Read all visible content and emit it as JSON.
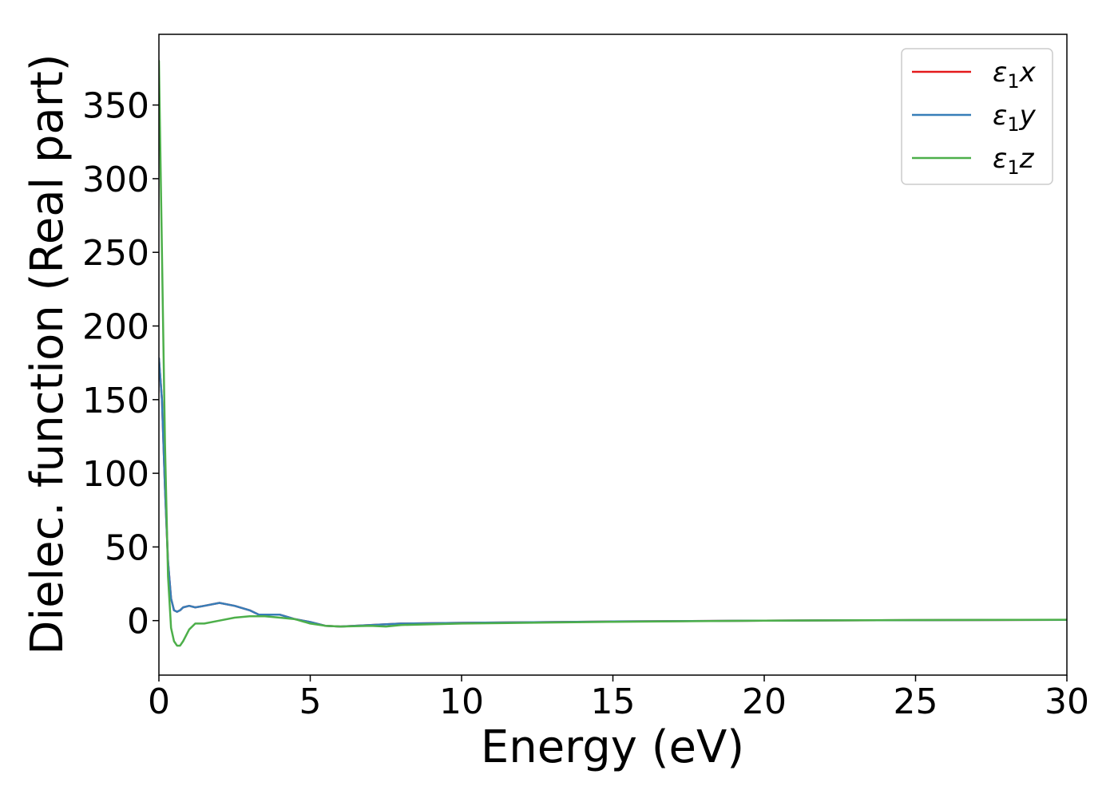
{
  "chart_data": {
    "type": "line",
    "title": "",
    "xlabel": "Energy (eV)",
    "ylabel": "Dielec. function (Real part)",
    "xlim": [
      0,
      30
    ],
    "ylim": [
      -37,
      398
    ],
    "xticks": [
      0,
      5,
      10,
      15,
      20,
      25,
      30
    ],
    "yticks": [
      0,
      50,
      100,
      150,
      200,
      250,
      300,
      350
    ],
    "grid": false,
    "legend": {
      "placement": "top-right"
    },
    "series": [
      {
        "name": "ε1x",
        "label_base": "ε",
        "label_sub": "1",
        "label_var": "x",
        "color": "#e41a1c",
        "x": [
          0,
          0.1,
          0.2,
          0.3,
          0.4,
          0.5,
          0.6,
          0.7,
          0.8,
          1.0,
          1.2,
          1.5,
          2.0,
          2.5,
          3.0,
          3.3,
          3.6,
          4.0,
          4.5,
          5.0,
          5.5,
          6.0,
          7.0,
          8.0,
          10,
          12,
          15,
          20,
          25,
          30
        ],
        "y": [
          178,
          150,
          90,
          40,
          15,
          7,
          6,
          7,
          9,
          10,
          9,
          10,
          12,
          10,
          7,
          4,
          4,
          4,
          1,
          -1,
          -3.5,
          -4,
          -3,
          -2,
          -1.5,
          -1.2,
          -0.6,
          0,
          0.3,
          0.5
        ]
      },
      {
        "name": "ε1y",
        "label_base": "ε",
        "label_sub": "1",
        "label_var": "y",
        "color": "#377eb8",
        "x": [
          0,
          0.1,
          0.2,
          0.3,
          0.4,
          0.5,
          0.6,
          0.7,
          0.8,
          1.0,
          1.2,
          1.5,
          2.0,
          2.5,
          3.0,
          3.3,
          3.6,
          4.0,
          4.5,
          5.0,
          5.5,
          6.0,
          7.0,
          8.0,
          10,
          12,
          15,
          20,
          25,
          30
        ],
        "y": [
          178,
          150,
          90,
          40,
          15,
          7,
          6,
          7,
          9,
          10,
          9,
          10,
          12,
          10,
          7,
          4,
          4,
          4,
          1,
          -1,
          -3.5,
          -4,
          -3,
          -2,
          -1.5,
          -1.2,
          -0.6,
          0,
          0.3,
          0.5
        ]
      },
      {
        "name": "ε1z",
        "label_base": "ε",
        "label_sub": "1",
        "label_var": "z",
        "color": "#4daf4a",
        "x": [
          0,
          0.1,
          0.2,
          0.3,
          0.4,
          0.5,
          0.6,
          0.7,
          0.8,
          1.0,
          1.2,
          1.5,
          2.0,
          2.5,
          3.0,
          3.5,
          4.0,
          4.5,
          5.0,
          5.5,
          6.0,
          7.0,
          7.5,
          8.0,
          10,
          12,
          15,
          20,
          25,
          30
        ],
        "y": [
          380,
          250,
          120,
          30,
          -5,
          -14,
          -17,
          -17,
          -14,
          -6,
          -2,
          -2,
          0,
          2,
          3,
          3,
          2,
          1,
          -2,
          -3.5,
          -4,
          -3.5,
          -4,
          -3,
          -2,
          -1.5,
          -0.8,
          0,
          0.4,
          0.6
        ]
      }
    ]
  }
}
